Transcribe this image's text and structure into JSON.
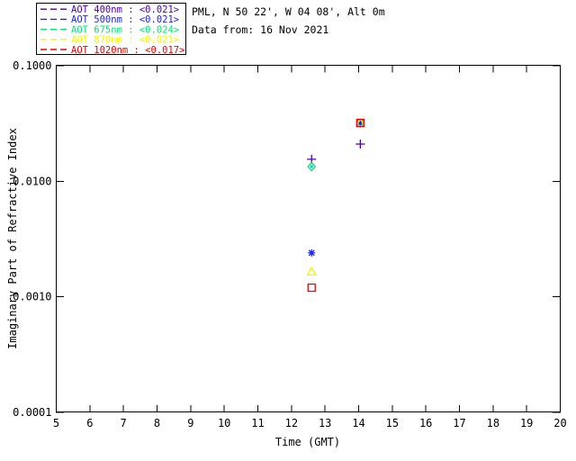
{
  "header": {
    "site_line": "PML, N 50 22', W 04 08', Alt 0m",
    "date_line": "Data from: 16 Nov 2021"
  },
  "legend": {
    "entries": [
      {
        "label": "AOT  400nm : <0.021>",
        "color": "#4B00A8"
      },
      {
        "label": "AOT  500nm : <0.021>",
        "color": "#2222EE"
      },
      {
        "label": "AOT  675nm : <0.024>",
        "color": "#00E673"
      },
      {
        "label": "AOT  870nm : <0.021>",
        "color": "#F5F500"
      },
      {
        "label": "AOT 1020nm : <0.017>",
        "color": "#EE0000"
      }
    ]
  },
  "chart_data": {
    "type": "scatter",
    "title": "",
    "xlabel": "Time (GMT)",
    "ylabel": "Imaginary Part of Refractive Index",
    "xlim": [
      5,
      20
    ],
    "xticks": [
      5,
      6,
      7,
      8,
      9,
      10,
      11,
      12,
      13,
      14,
      15,
      16,
      17,
      18,
      19,
      20
    ],
    "yscale": "log",
    "ylim": [
      0.0001,
      0.1
    ],
    "yticks": [
      {
        "value": 0.1,
        "label": "0.1000"
      },
      {
        "value": 0.01,
        "label": "0.0100"
      },
      {
        "value": 0.001,
        "label": "0.0010"
      },
      {
        "value": 0.0001,
        "label": "0.0001"
      }
    ],
    "grid": false,
    "legend_position": "top-left",
    "series": [
      {
        "name": "AOT 400nm",
        "marker": "plus",
        "color": "#4B00A8",
        "points": [
          {
            "x": 12.6,
            "y": 0.0155
          },
          {
            "x": 14.05,
            "y": 0.021
          }
        ]
      },
      {
        "name": "AOT 500nm",
        "marker": "asterisk",
        "color": "#2222EE",
        "points": [
          {
            "x": 12.6,
            "y": 0.0024
          },
          {
            "x": 14.05,
            "y": 0.032
          }
        ]
      },
      {
        "name": "AOT 675nm",
        "marker": "diamond",
        "color": "#00E673",
        "points": [
          {
            "x": 12.6,
            "y": 0.0134
          },
          {
            "x": 14.05,
            "y": 0.032
          }
        ]
      },
      {
        "name": "AOT 870nm",
        "marker": "triangle",
        "color": "#F5F500",
        "points": [
          {
            "x": 12.6,
            "y": 0.00165
          },
          {
            "x": 14.05,
            "y": 0.032
          }
        ]
      },
      {
        "name": "AOT 1020nm",
        "marker": "square",
        "color": "#EE0000",
        "points": [
          {
            "x": 12.6,
            "y": 0.0012
          },
          {
            "x": 14.05,
            "y": 0.032
          }
        ]
      }
    ],
    "extra_markers": [
      {
        "marker": "dot",
        "color": "#00CCCC",
        "x": 12.6,
        "y": 0.0134
      }
    ]
  }
}
